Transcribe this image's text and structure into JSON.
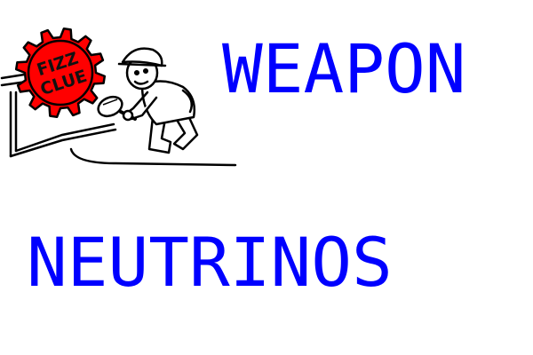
{
  "logo": {
    "badge_line1": "FIZZ",
    "badge_line2": "CLUE",
    "gear_color": "#ff0000",
    "badge_text_color": "#111111",
    "outline_color": "#000000"
  },
  "words": {
    "top": "WEAPON",
    "bottom": "NEUTRINOS",
    "color": "#0000ff"
  }
}
